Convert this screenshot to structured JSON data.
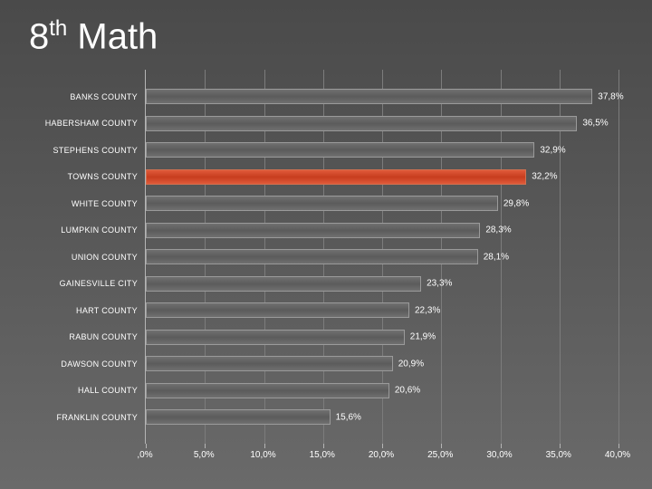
{
  "title_main": "8",
  "title_sup": "th",
  "title_rest": " Math",
  "chart": {
    "type": "bar-horizontal",
    "xmax": 40.0,
    "xtick_step": 5.0,
    "xticks": [
      ",0%",
      "5,0%",
      "10,0%",
      "15,0%",
      "20,0%",
      "25,0%",
      "30,0%",
      "35,0%",
      "40,0%"
    ],
    "background_gradient": [
      "#4a4a4a",
      "#595959",
      "#6a6a6a"
    ],
    "grid_color": "#7c7c7c",
    "axis_color": "#b5b5b5",
    "bar_normal_colors": [
      "#707070",
      "#5b5b5b"
    ],
    "bar_highlight_colors": [
      "#e05a3a",
      "#c73d1e"
    ],
    "label_fontsize": 9,
    "tick_fontsize": 10,
    "value_fontsize": 10,
    "rows": [
      {
        "category": "BANKS COUNTY",
        "value": 37.8,
        "label": "37,8%",
        "highlight": false
      },
      {
        "category": "HABERSHAM COUNTY",
        "value": 36.5,
        "label": "36,5%",
        "highlight": false
      },
      {
        "category": "STEPHENS COUNTY",
        "value": 32.9,
        "label": "32,9%",
        "highlight": false
      },
      {
        "category": "TOWNS COUNTY",
        "value": 32.2,
        "label": "32,2%",
        "highlight": true
      },
      {
        "category": "WHITE COUNTY",
        "value": 29.8,
        "label": "29,8%",
        "highlight": false
      },
      {
        "category": "LUMPKIN COUNTY",
        "value": 28.3,
        "label": "28,3%",
        "highlight": false
      },
      {
        "category": "UNION COUNTY",
        "value": 28.1,
        "label": "28,1%",
        "highlight": false
      },
      {
        "category": "GAINESVILLE CITY",
        "value": 23.3,
        "label": "23,3%",
        "highlight": false
      },
      {
        "category": "HART COUNTY",
        "value": 22.3,
        "label": "22,3%",
        "highlight": false
      },
      {
        "category": "RABUN COUNTY",
        "value": 21.9,
        "label": "21,9%",
        "highlight": false
      },
      {
        "category": "DAWSON COUNTY",
        "value": 20.9,
        "label": "20,9%",
        "highlight": false
      },
      {
        "category": "HALL COUNTY",
        "value": 20.6,
        "label": "20,6%",
        "highlight": false
      },
      {
        "category": "FRANKLIN COUNTY",
        "value": 15.6,
        "label": "15,6%",
        "highlight": false
      }
    ]
  }
}
